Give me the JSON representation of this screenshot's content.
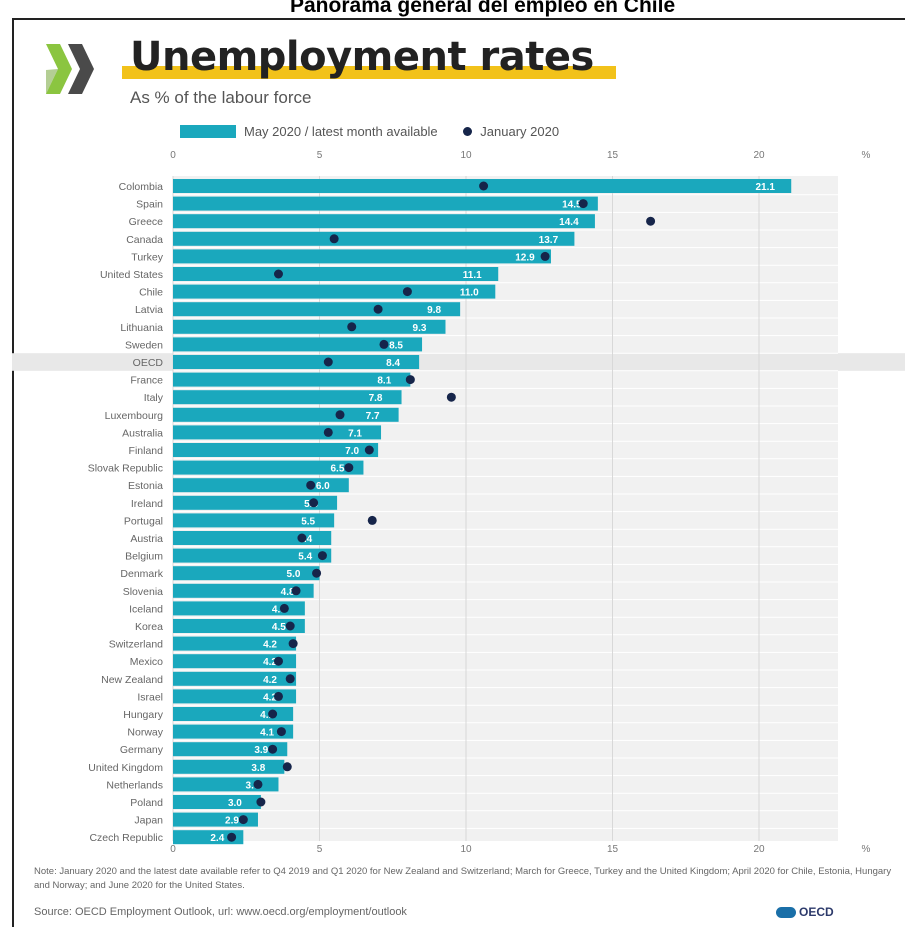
{
  "page_header": "Panorama general del empleo en Chile",
  "icons": {
    "logo": "oecd-chevron-logo"
  },
  "colors": {
    "bar": "#1aa8bd",
    "dot": "#16254a",
    "highlight": "#e8e8e8",
    "title_underline": "#f2c21a"
  },
  "chart_data": {
    "type": "bar",
    "orientation": "horizontal",
    "title": "Unemployment rates",
    "subtitle": "As % of the labour force",
    "unit": "%",
    "xlim": [
      0,
      21.1
    ],
    "ticks": [
      "0",
      "5",
      "10",
      "15",
      "20"
    ],
    "legend_position": "top",
    "grid": true,
    "highlight_category": "OECD",
    "categories": [
      "Colombia",
      "Spain",
      "Greece",
      "Canada",
      "Turkey",
      "United States",
      "Chile",
      "Latvia",
      "Lithuania",
      "Sweden",
      "OECD",
      "France",
      "Italy",
      "Luxembourg",
      "Australia",
      "Finland",
      "Slovak Republic",
      "Estonia",
      "Ireland",
      "Portugal",
      "Austria",
      "Belgium",
      "Denmark",
      "Slovenia",
      "Iceland",
      "Korea",
      "Switzerland",
      "Mexico",
      "New Zealand",
      "Israel",
      "Hungary",
      "Norway",
      "Germany",
      "United Kingdom",
      "Netherlands",
      "Poland",
      "Japan",
      "Czech Republic"
    ],
    "series": [
      {
        "name": "May 2020 / latest month available",
        "values": [
          21.1,
          14.5,
          14.4,
          13.7,
          12.9,
          11.1,
          11.0,
          9.8,
          9.3,
          8.5,
          8.4,
          8.1,
          7.8,
          7.7,
          7.1,
          7.0,
          6.5,
          6.0,
          5.6,
          5.5,
          5.4,
          5.4,
          5.0,
          4.8,
          4.5,
          4.5,
          4.2,
          4.2,
          4.2,
          4.2,
          4.1,
          4.1,
          3.9,
          3.8,
          3.6,
          3.0,
          2.9,
          2.4
        ],
        "labels": [
          "21.1",
          "14.5",
          "14.4",
          "13.7",
          "12.9",
          "11.1",
          "11.0",
          "9.8",
          "9.3",
          "8.5",
          "8.4",
          "8.1",
          "7.8",
          "7.7",
          "7.1",
          "7.0",
          "6.5",
          "6.0",
          "5.6",
          "5.5",
          "5.4",
          "5.4",
          "5.0",
          "4.8",
          "4.5",
          "4.5",
          "4.2",
          "4.2",
          "4.2",
          "4.2",
          "4.1",
          "4.1",
          "3.9",
          "3.8",
          "3.6",
          "3.0",
          "2.9",
          "2.4"
        ]
      },
      {
        "name": "January 2020",
        "values": [
          10.6,
          14.0,
          16.3,
          5.5,
          12.7,
          3.6,
          8.0,
          7.0,
          6.1,
          7.2,
          5.3,
          8.1,
          9.5,
          5.7,
          5.3,
          6.7,
          6.0,
          4.7,
          4.8,
          6.8,
          4.4,
          5.1,
          4.9,
          4.2,
          3.8,
          4.0,
          4.1,
          3.6,
          4.0,
          3.6,
          3.4,
          3.7,
          3.4,
          3.9,
          2.9,
          3.0,
          2.4,
          2.0
        ]
      }
    ]
  },
  "note": "Note: January 2020 and the latest date available refer to Q4 2019 and Q1 2020 for New Zealand and Switzerland; March for Greece, Turkey and the United Kingdom; April 2020 for Chile, Estonia, Hungary and Norway; and June 2020 for the United States.",
  "source": "Source: OECD Employment Outlook, url: www.oecd.org/employment/outlook",
  "footer_logo": "OECD"
}
